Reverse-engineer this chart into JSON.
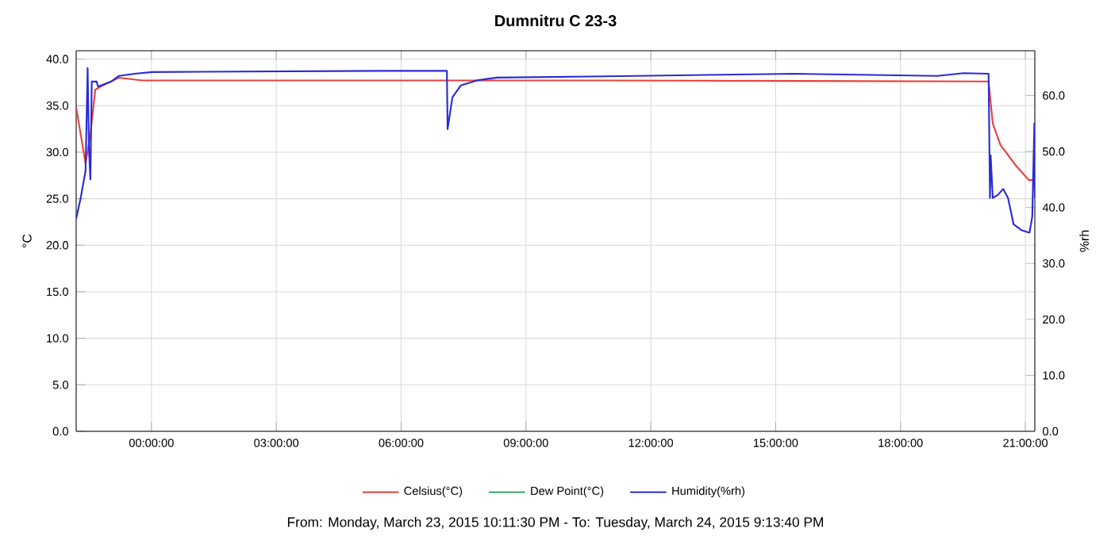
{
  "chart_data": {
    "type": "line",
    "title": "Dumnitru C 23-3",
    "ylabel": "°C",
    "y2label": "%rh",
    "annotations": [
      "From: Monday, March 23, 2015 10:11:30 PM  -  To: Tuesday, March 24, 2015 9:13:40 PM"
    ],
    "xlim": [
      "2015-03-23T22:11:30",
      "2015-03-24T21:13:40"
    ],
    "xticks": [
      {
        "value": "2015-03-24T00:00",
        "label": "00:00:00"
      },
      {
        "value": "2015-03-24T03:00",
        "label": "03:00:00"
      },
      {
        "value": "2015-03-24T06:00",
        "label": "06:00:00"
      },
      {
        "value": "2015-03-24T09:00",
        "label": "09:00:00"
      },
      {
        "value": "2015-03-24T12:00",
        "label": "12:00:00"
      },
      {
        "value": "2015-03-24T15:00",
        "label": "15:00:00"
      },
      {
        "value": "2015-03-24T18:00",
        "label": "18:00:00"
      },
      {
        "value": "2015-03-24T21:00",
        "label": "21:00:00"
      }
    ],
    "ylim": [
      0,
      40.9
    ],
    "yticks": [
      {
        "value": 0,
        "label": "0.0"
      },
      {
        "value": 5,
        "label": "5.0"
      },
      {
        "value": 10,
        "label": "10.0"
      },
      {
        "value": 15,
        "label": "15.0"
      },
      {
        "value": 20,
        "label": "20.0"
      },
      {
        "value": 25,
        "label": "25.0"
      },
      {
        "value": 30,
        "label": "30.0"
      },
      {
        "value": 35,
        "label": "35.0"
      },
      {
        "value": 40,
        "label": "40.0"
      }
    ],
    "y2lim": [
      0,
      68
    ],
    "y2ticks": [
      {
        "value": 0,
        "label": "0.0"
      },
      {
        "value": 10,
        "label": "10.0"
      },
      {
        "value": 20,
        "label": "20.0"
      },
      {
        "value": 30,
        "label": "30.0"
      },
      {
        "value": 40,
        "label": "40.0"
      },
      {
        "value": 50,
        "label": "50.0"
      },
      {
        "value": 60,
        "label": "60.0"
      }
    ],
    "grid": true,
    "legend": "bottom",
    "marker": "none",
    "line_style": "solid",
    "series": [
      {
        "name": "Celsius(°C)",
        "color": "#e8413c",
        "x": [
          "2015-03-23T22:11:30",
          "2015-03-23T22:25",
          "2015-03-23T22:32",
          "2015-03-23T22:39",
          "2015-03-23T22:48",
          "2015-03-23T23:13",
          "2015-03-23T23:47",
          "2015-03-24T11:00",
          "2015-03-24T20:07",
          "2015-03-24T20:13",
          "2015-03-24T20:24",
          "2015-03-24T20:47",
          "2015-03-24T21:05",
          "2015-03-24T21:12"
        ],
        "values": [
          34.8,
          28.8,
          31.9,
          36.7,
          37.1,
          38.0,
          37.7,
          37.7,
          37.6,
          33.1,
          30.8,
          28.5,
          27.0,
          27.0
        ]
      },
      {
        "name": "Dew Point(°C)",
        "color": "#3aa66a"
      },
      {
        "name": "Humidity(%rh)",
        "color": "#2b2bd6",
        "axis": "y2",
        "x": [
          "2015-03-23T22:11:30",
          "2015-03-23T22:18",
          "2015-03-23T22:25",
          "2015-03-23T22:28",
          "2015-03-23T22:30",
          "2015-03-23T22:32",
          "2015-03-23T22:34",
          "2015-03-23T22:41",
          "2015-03-23T22:43",
          "2015-03-23T23:02",
          "2015-03-23T23:13",
          "2015-03-23T23:36",
          "2015-03-24T00:01",
          "2015-03-24T05:31",
          "2015-03-24T07:06",
          "2015-03-24T07:07",
          "2015-03-24T07:14",
          "2015-03-24T07:26",
          "2015-03-24T07:49",
          "2015-03-24T08:18",
          "2015-03-24T11:37",
          "2015-03-24T15:26",
          "2015-03-24T18:53",
          "2015-03-24T19:31",
          "2015-03-24T20:07",
          "2015-03-24T20:09",
          "2015-03-24T20:10",
          "2015-03-24T20:13",
          "2015-03-24T20:20",
          "2015-03-24T20:28",
          "2015-03-24T20:35",
          "2015-03-24T20:43",
          "2015-03-24T20:55",
          "2015-03-24T21:06",
          "2015-03-24T21:10",
          "2015-03-24T21:13",
          "2015-03-24T21:13:40"
        ],
        "values": [
          38.0,
          41.7,
          46.5,
          64.9,
          50.2,
          45.0,
          62.5,
          62.5,
          61.6,
          62.5,
          63.5,
          63.9,
          64.2,
          64.4,
          64.4,
          54.0,
          59.7,
          61.8,
          62.7,
          63.2,
          63.5,
          63.9,
          63.5,
          64.0,
          63.9,
          41.7,
          49.3,
          41.7,
          42.2,
          43.3,
          41.7,
          37.0,
          35.9,
          35.5,
          38.4,
          55.0,
          41.7
        ]
      }
    ]
  }
}
